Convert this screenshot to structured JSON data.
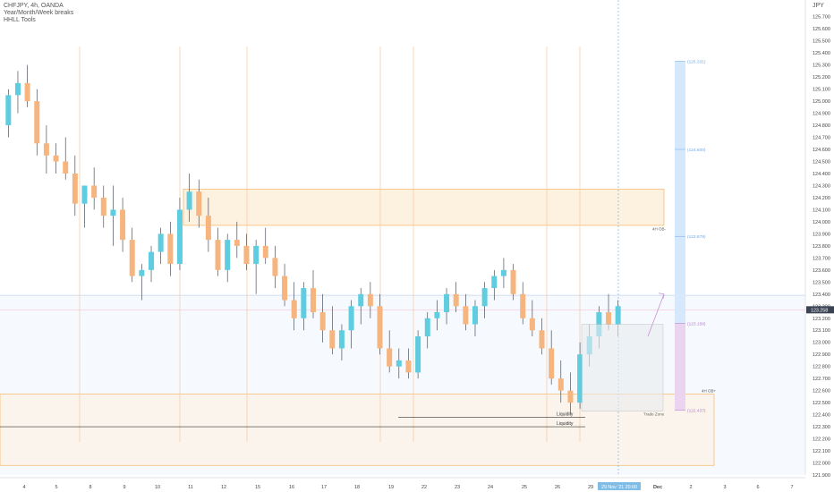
{
  "legend": {
    "symbol_line": "CHFJPY, 4h, OANDA",
    "indicator_1": "Year/Month/Week breaks",
    "indicator_2": "HHLL Tools"
  },
  "currency": "JPY",
  "colors": {
    "up": "#5fcde0",
    "down": "#f6b57e",
    "wick": "#2f3640",
    "break": "#f7c79c",
    "ob": "#f5a947",
    "target": "#9fc8f3",
    "stop": "#d9a6e0"
  },
  "annotations": {
    "ob_upper_label": "4H OB-",
    "ob_lower_label": "4H OB+",
    "liquidity_1": "Liquidity",
    "liquidity_2": "Liquidity",
    "trade_zone": "Trade Zone",
    "level_top": "(125.331)",
    "level_2": "(124.600)",
    "level_3": "(123.879)",
    "level_entry": "(123.158)",
    "level_stop": "(122.437)"
  },
  "price_tag": "123.258",
  "date_tag": "29 Nov '21   20:00",
  "chart_data": {
    "type": "candlestick",
    "title": "CHFJPY, 4h, OANDA",
    "ylim": [
      121.9,
      125.75
    ],
    "yticks": [
      "125.700",
      "125.600",
      "125.500",
      "125.400",
      "125.300",
      "125.200",
      "125.100",
      "125.000",
      "124.900",
      "124.800",
      "124.700",
      "124.600",
      "124.500",
      "124.400",
      "124.300",
      "124.200",
      "124.100",
      "124.000",
      "123.900",
      "123.800",
      "123.700",
      "123.600",
      "123.500",
      "123.400",
      "123.300",
      "123.200",
      "123.100",
      "123.000",
      "122.900",
      "122.800",
      "122.700",
      "122.600",
      "122.500",
      "122.400",
      "122.300",
      "122.200",
      "122.100",
      "122.000",
      "121.900"
    ],
    "xticks": [
      "4",
      "5",
      "8",
      "9",
      "10",
      "11",
      "12",
      "15",
      "16",
      "17",
      "18",
      "19",
      "22",
      "23",
      "24",
      "25",
      "26",
      "29",
      "Dec",
      "2",
      "3",
      "6",
      "7"
    ],
    "week_breaks": [
      "8",
      "11",
      "15",
      "19",
      "22",
      "26",
      "29"
    ],
    "candles": [
      [
        124.8,
        125.1,
        124.7,
        125.05
      ],
      [
        125.05,
        125.25,
        124.9,
        125.15
      ],
      [
        125.15,
        125.3,
        124.95,
        125.0
      ],
      [
        125.0,
        125.1,
        124.55,
        124.65
      ],
      [
        124.65,
        124.8,
        124.4,
        124.55
      ],
      [
        124.55,
        124.65,
        124.4,
        124.5
      ],
      [
        124.5,
        124.7,
        124.35,
        124.4
      ],
      [
        124.4,
        124.55,
        124.05,
        124.15
      ],
      [
        124.15,
        124.3,
        123.95,
        124.3
      ],
      [
        124.3,
        124.45,
        124.1,
        124.2
      ],
      [
        124.2,
        124.3,
        123.95,
        124.05
      ],
      [
        124.05,
        124.3,
        123.8,
        124.1
      ],
      [
        124.1,
        124.2,
        123.75,
        123.85
      ],
      [
        123.85,
        123.95,
        123.5,
        123.55
      ],
      [
        123.55,
        123.65,
        123.35,
        123.6
      ],
      [
        123.6,
        123.8,
        123.5,
        123.75
      ],
      [
        123.75,
        123.95,
        123.65,
        123.9
      ],
      [
        123.9,
        124.0,
        123.55,
        123.65
      ],
      [
        123.65,
        124.2,
        123.6,
        124.1
      ],
      [
        124.1,
        124.4,
        124.0,
        124.25
      ],
      [
        124.25,
        124.35,
        123.95,
        124.05
      ],
      [
        124.05,
        124.2,
        123.75,
        123.85
      ],
      [
        123.85,
        123.95,
        123.55,
        123.6
      ],
      [
        123.6,
        123.9,
        123.5,
        123.85
      ],
      [
        123.85,
        124.0,
        123.7,
        123.8
      ],
      [
        123.8,
        123.9,
        123.6,
        123.65
      ],
      [
        123.65,
        123.85,
        123.4,
        123.8
      ],
      [
        123.8,
        123.95,
        123.65,
        123.7
      ],
      [
        123.7,
        123.8,
        123.45,
        123.55
      ],
      [
        123.55,
        123.65,
        123.3,
        123.35
      ],
      [
        123.35,
        123.5,
        123.1,
        123.2
      ],
      [
        123.2,
        123.5,
        123.1,
        123.45
      ],
      [
        123.45,
        123.6,
        123.2,
        123.25
      ],
      [
        123.25,
        123.4,
        123.0,
        123.1
      ],
      [
        123.1,
        123.3,
        122.9,
        122.95
      ],
      [
        122.95,
        123.15,
        122.85,
        123.1
      ],
      [
        123.1,
        123.35,
        122.95,
        123.3
      ],
      [
        123.3,
        123.45,
        123.15,
        123.4
      ],
      [
        123.4,
        123.5,
        123.2,
        123.3
      ],
      [
        123.3,
        123.4,
        122.9,
        122.95
      ],
      [
        122.95,
        123.1,
        122.75,
        122.8
      ],
      [
        122.8,
        122.95,
        122.7,
        122.85
      ],
      [
        122.85,
        122.95,
        122.7,
        122.75
      ],
      [
        122.75,
        123.1,
        122.7,
        123.05
      ],
      [
        123.05,
        123.25,
        122.95,
        123.2
      ],
      [
        123.2,
        123.35,
        123.1,
        123.25
      ],
      [
        123.25,
        123.45,
        123.15,
        123.4
      ],
      [
        123.4,
        123.5,
        123.25,
        123.3
      ],
      [
        123.3,
        123.4,
        123.1,
        123.15
      ],
      [
        123.15,
        123.35,
        123.05,
        123.3
      ],
      [
        123.3,
        123.5,
        123.2,
        123.45
      ],
      [
        123.45,
        123.6,
        123.35,
        123.55
      ],
      [
        123.55,
        123.7,
        123.45,
        123.6
      ],
      [
        123.6,
        123.65,
        123.35,
        123.4
      ],
      [
        123.4,
        123.5,
        123.15,
        123.2
      ],
      [
        123.2,
        123.35,
        123.05,
        123.1
      ],
      [
        123.1,
        123.2,
        122.9,
        122.95
      ],
      [
        122.95,
        123.1,
        122.65,
        122.7
      ],
      [
        122.7,
        122.85,
        122.5,
        122.6
      ],
      [
        122.6,
        122.75,
        122.4,
        122.5
      ],
      [
        122.5,
        123.0,
        122.45,
        122.9
      ],
      [
        122.9,
        123.15,
        122.8,
        123.05
      ],
      [
        123.05,
        123.3,
        122.95,
        123.25
      ],
      [
        123.25,
        123.4,
        123.1,
        123.15
      ],
      [
        123.15,
        123.35,
        123.05,
        123.3
      ]
    ]
  }
}
